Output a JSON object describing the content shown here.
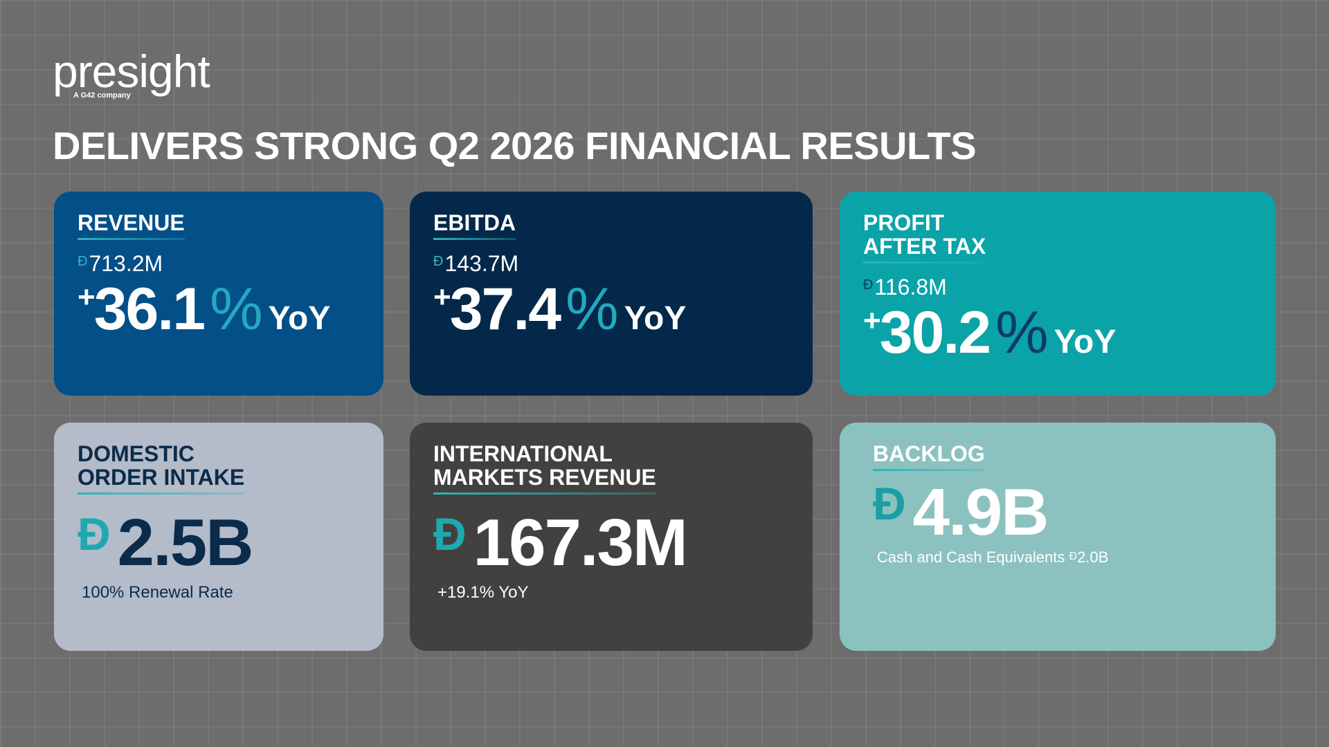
{
  "logo": {
    "name": "presight",
    "tagline": "A G42 company"
  },
  "title": "DELIVERS STRONG Q2 2026 FINANCIAL RESULTS",
  "cards": [
    {
      "label": [
        "REVENUE"
      ],
      "currency": "Đ",
      "amount": "713.2M",
      "sign": "+",
      "change": "36.1",
      "unit": "%",
      "period": "YoY"
    },
    {
      "label": [
        "EBITDA"
      ],
      "currency": "Đ",
      "amount": "143.7M",
      "sign": "+",
      "change": "37.4",
      "unit": "%",
      "period": "YoY"
    },
    {
      "label": [
        "PROFIT",
        "AFTER TAX"
      ],
      "currency": "Đ",
      "amount": "116.8M",
      "sign": "+",
      "change": "30.2",
      "unit": "%",
      "period": "YoY"
    },
    {
      "label": [
        "DOMESTIC",
        "ORDER INTAKE"
      ],
      "currency": "Đ",
      "value": "2.5B",
      "note": "100% Renewal Rate"
    },
    {
      "label": [
        "INTERNATIONAL",
        "MARKETS REVENUE"
      ],
      "currency": "Đ",
      "value": "167.3M",
      "note": "+19.1% YoY"
    },
    {
      "label": [
        "BACKLOG"
      ],
      "currency": "Đ",
      "value": "4.9B",
      "note": "Cash and Cash Equivalents",
      "note_currency": "Đ",
      "note_value": "2.0B"
    }
  ]
}
